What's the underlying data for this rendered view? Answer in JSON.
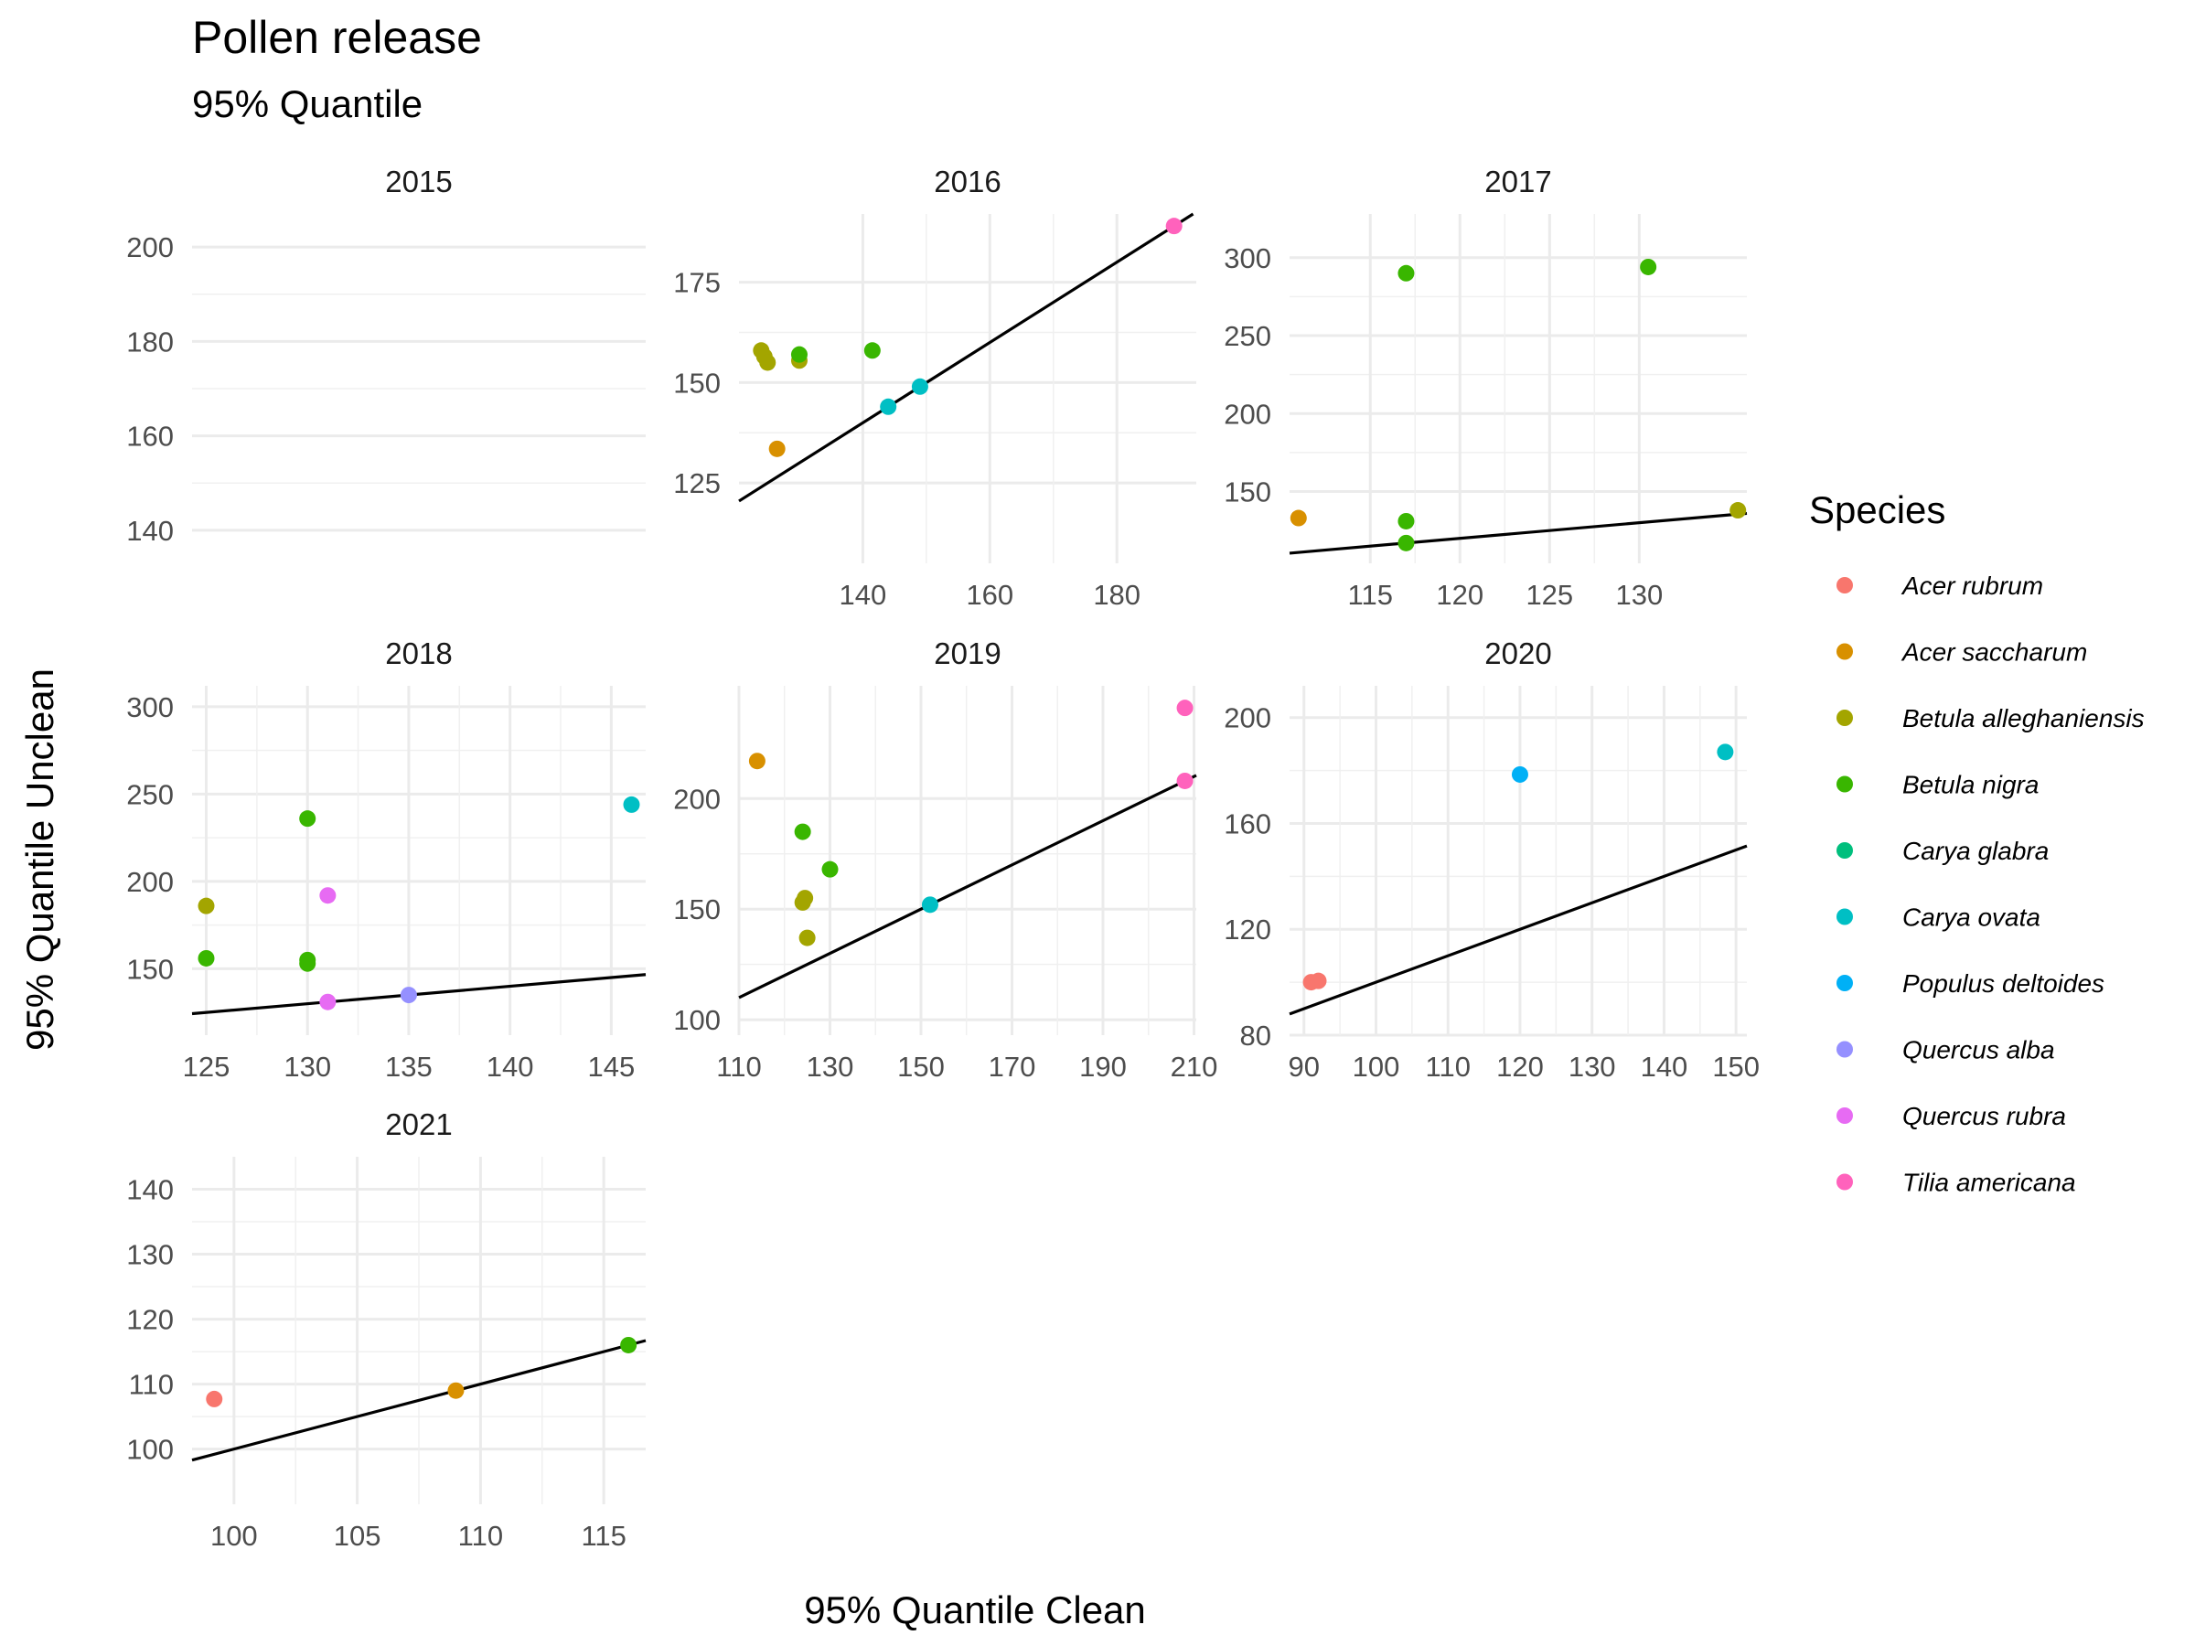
{
  "chart_data": {
    "type": "scatter",
    "title": "Pollen release",
    "subtitle": "95% Quantile",
    "xlabel": "95% Quantile Clean",
    "ylabel": "95% Quantile Unclean",
    "reference_line": "y = x",
    "legend": {
      "title": "Species",
      "placement": "right",
      "entries": [
        {
          "name": "Acer rubrum",
          "color": "#F8766D"
        },
        {
          "name": "Acer saccharum",
          "color": "#D89000"
        },
        {
          "name": "Betula alleghaniensis",
          "color": "#A3A500"
        },
        {
          "name": "Betula nigra",
          "color": "#39B600"
        },
        {
          "name": "Carya glabra",
          "color": "#00BF7D"
        },
        {
          "name": "Carya ovata",
          "color": "#00BFC4"
        },
        {
          "name": "Populus deltoides",
          "color": "#00B0F6"
        },
        {
          "name": "Quercus alba",
          "color": "#9590FF"
        },
        {
          "name": "Quercus rubra",
          "color": "#E76BF3"
        },
        {
          "name": "Tilia americana",
          "color": "#FF62BC"
        }
      ]
    },
    "facets": [
      {
        "title": "2015",
        "xticks": [],
        "yticks": [
          140,
          160,
          180,
          200
        ],
        "ylim": [
          133,
          207
        ],
        "points": []
      },
      {
        "title": "2016",
        "xlim": [
          120.5,
          192.5
        ],
        "xticks": [
          140,
          160,
          180
        ],
        "ylim": [
          105,
          192
        ],
        "yticks": [
          125,
          150,
          175
        ],
        "points": [
          {
            "x": 124,
            "y": 158,
            "s": 2
          },
          {
            "x": 124.5,
            "y": 156.5,
            "s": 2
          },
          {
            "x": 125,
            "y": 155,
            "s": 2
          },
          {
            "x": 130,
            "y": 155.5,
            "s": 2
          },
          {
            "x": 126.5,
            "y": 133.5,
            "s": 1
          },
          {
            "x": 130,
            "y": 157,
            "s": 3
          },
          {
            "x": 141.5,
            "y": 158,
            "s": 3
          },
          {
            "x": 144,
            "y": 144,
            "s": 5
          },
          {
            "x": 149,
            "y": 149,
            "s": 5
          },
          {
            "x": 189,
            "y": 189,
            "s": 9
          }
        ]
      },
      {
        "title": "2017",
        "xlim": [
          110.5,
          136
        ],
        "xticks": [
          115,
          120,
          125,
          130
        ],
        "ylim": [
          104,
          328
        ],
        "yticks": [
          150,
          200,
          250,
          300
        ],
        "points": [
          {
            "x": 111,
            "y": 133,
            "s": 1
          },
          {
            "x": 117,
            "y": 290,
            "s": 3
          },
          {
            "x": 130.5,
            "y": 294,
            "s": 3
          },
          {
            "x": 117,
            "y": 131,
            "s": 3
          },
          {
            "x": 117,
            "y": 117,
            "s": 3
          },
          {
            "x": 135.5,
            "y": 138,
            "s": 2
          }
        ]
      },
      {
        "title": "2018",
        "xlim": [
          124.3,
          146.7
        ],
        "xticks": [
          125,
          130,
          135,
          140,
          145
        ],
        "ylim": [
          112,
          312
        ],
        "yticks": [
          150,
          200,
          250,
          300
        ],
        "points": [
          {
            "x": 125,
            "y": 186,
            "s": 2
          },
          {
            "x": 125,
            "y": 156,
            "s": 3
          },
          {
            "x": 130,
            "y": 236,
            "s": 3
          },
          {
            "x": 130,
            "y": 155,
            "s": 3
          },
          {
            "x": 130,
            "y": 153,
            "s": 3
          },
          {
            "x": 131,
            "y": 192,
            "s": 8
          },
          {
            "x": 131,
            "y": 131,
            "s": 8
          },
          {
            "x": 135,
            "y": 135,
            "s": 7
          },
          {
            "x": 146,
            "y": 244,
            "s": 5
          }
        ]
      },
      {
        "title": "2019",
        "xlim": [
          110,
          210.5
        ],
        "xticks": [
          110,
          130,
          150,
          170,
          190,
          210
        ],
        "ylim": [
          93,
          251
        ],
        "yticks": [
          100,
          150,
          200
        ],
        "points": [
          {
            "x": 114,
            "y": 217,
            "s": 1
          },
          {
            "x": 124,
            "y": 185,
            "s": 3
          },
          {
            "x": 130,
            "y": 168,
            "s": 3
          },
          {
            "x": 124,
            "y": 153,
            "s": 2
          },
          {
            "x": 124.5,
            "y": 155,
            "s": 2
          },
          {
            "x": 125,
            "y": 137,
            "s": 2
          },
          {
            "x": 152,
            "y": 152,
            "s": 5
          },
          {
            "x": 208,
            "y": 241,
            "s": 9
          },
          {
            "x": 208,
            "y": 208,
            "s": 9
          }
        ]
      },
      {
        "title": "2020",
        "xlim": [
          88,
          151.5
        ],
        "xticks": [
          90,
          100,
          110,
          120,
          130,
          140,
          150
        ],
        "ylim": [
          80,
          212
        ],
        "yticks": [
          80,
          120,
          160,
          200
        ],
        "points": [
          {
            "x": 91,
            "y": 100,
            "s": 0
          },
          {
            "x": 92,
            "y": 100.5,
            "s": 0
          },
          {
            "x": 120,
            "y": 178.5,
            "s": 6
          },
          {
            "x": 148.5,
            "y": 187,
            "s": 5
          }
        ]
      },
      {
        "title": "2021",
        "xlim": [
          98.3,
          116.7
        ],
        "xticks": [
          100,
          105,
          110,
          115
        ],
        "ylim": [
          91.5,
          145
        ],
        "yticks": [
          100,
          110,
          120,
          130,
          140
        ],
        "points": [
          {
            "x": 99.2,
            "y": 107.7,
            "s": 0
          },
          {
            "x": 109,
            "y": 109,
            "s": 1
          },
          {
            "x": 116,
            "y": 116,
            "s": 3
          }
        ]
      }
    ]
  }
}
